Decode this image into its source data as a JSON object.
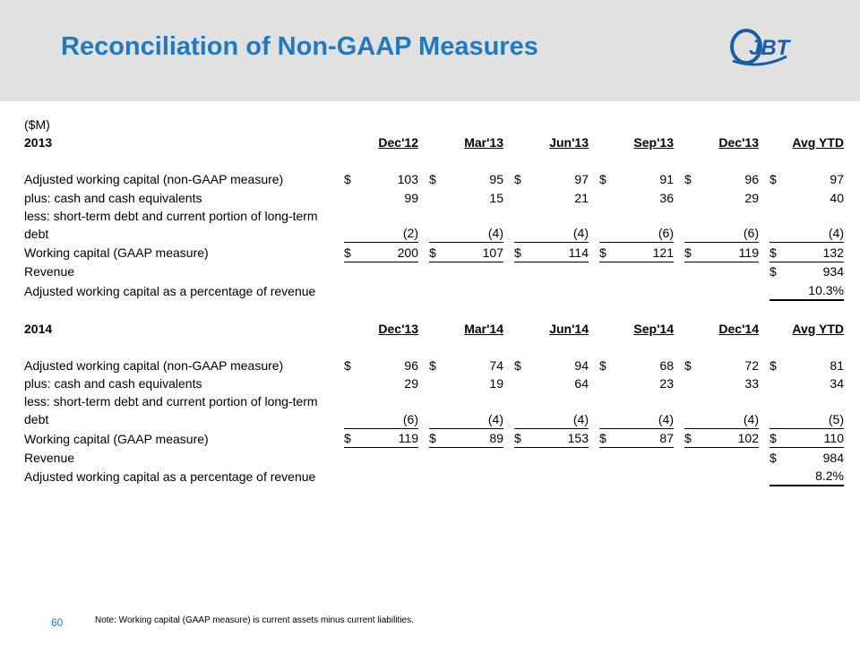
{
  "header": {
    "title": "Reconciliation of Non-GAAP Measures",
    "logo": "JBT"
  },
  "table": {
    "unit": "($M)",
    "sections": [
      {
        "year": "2013",
        "columns": [
          "Dec'12",
          "Mar'13",
          "Jun'13",
          "Sep'13",
          "Dec'13",
          "Avg YTD"
        ],
        "rows": [
          {
            "label": "Adjusted working capital (non-GAAP measure)",
            "cells": [
              {
                "sign": "$",
                "value": "103"
              },
              {
                "sign": "$",
                "value": "95"
              },
              {
                "sign": "$",
                "value": "97"
              },
              {
                "sign": "$",
                "value": "91"
              },
              {
                "sign": "$",
                "value": "96"
              },
              {
                "sign": "$",
                "value": "97"
              }
            ]
          },
          {
            "label": "plus: cash and cash equivalents",
            "cells": [
              {
                "value": "99"
              },
              {
                "value": "15"
              },
              {
                "value": "21"
              },
              {
                "value": "36"
              },
              {
                "value": "29"
              },
              {
                "value": "40"
              }
            ]
          },
          {
            "label": "less: short-term debt and current portion of long-term debt",
            "cells": [
              {
                "value": "(2)"
              },
              {
                "value": "(4)"
              },
              {
                "value": "(4)"
              },
              {
                "value": "(6)"
              },
              {
                "value": "(6)"
              },
              {
                "value": "(4)"
              }
            ]
          },
          {
            "label": "Working capital (GAAP measure)",
            "cells": [
              {
                "sign": "$",
                "value": "200"
              },
              {
                "sign": "$",
                "value": "107"
              },
              {
                "sign": "$",
                "value": "114"
              },
              {
                "sign": "$",
                "value": "121"
              },
              {
                "sign": "$",
                "value": "119"
              },
              {
                "sign": "$",
                "value": "132"
              }
            ]
          },
          {
            "label": "Revenue",
            "cells": [
              {
                "sign": "$",
                "value": "934"
              }
            ]
          },
          {
            "label": "Adjusted working capital as a percentage of revenue",
            "cells": [
              {
                "value": "10.3%"
              }
            ]
          }
        ]
      },
      {
        "year": "2014",
        "columns": [
          "Dec'13",
          "Mar'14",
          "Jun'14",
          "Sep'14",
          "Dec'14",
          "Avg YTD"
        ],
        "rows": [
          {
            "label": "Adjusted working capital (non-GAAP measure)",
            "cells": [
              {
                "sign": "$",
                "value": "96"
              },
              {
                "sign": "$",
                "value": "74"
              },
              {
                "sign": "$",
                "value": "94"
              },
              {
                "sign": "$",
                "value": "68"
              },
              {
                "sign": "$",
                "value": "72"
              },
              {
                "sign": "$",
                "value": "81"
              }
            ]
          },
          {
            "label": "plus: cash and cash equivalents",
            "cells": [
              {
                "value": "29"
              },
              {
                "value": "19"
              },
              {
                "value": "64"
              },
              {
                "value": "23"
              },
              {
                "value": "33"
              },
              {
                "value": "34"
              }
            ]
          },
          {
            "label": "less: short-term debt and current portion of long-term debt",
            "cells": [
              {
                "value": "(6)"
              },
              {
                "value": "(4)"
              },
              {
                "value": "(4)"
              },
              {
                "value": "(4)"
              },
              {
                "value": "(4)"
              },
              {
                "value": "(5)"
              }
            ]
          },
          {
            "label": "Working capital (GAAP measure)",
            "cells": [
              {
                "sign": "$",
                "value": "119"
              },
              {
                "sign": "$",
                "value": "89"
              },
              {
                "sign": "$",
                "value": "153"
              },
              {
                "sign": "$",
                "value": "87"
              },
              {
                "sign": "$",
                "value": "102"
              },
              {
                "sign": "$",
                "value": "110"
              }
            ]
          },
          {
            "label": "Revenue",
            "cells": [
              {
                "sign": "$",
                "value": "984"
              }
            ]
          },
          {
            "label": "Adjusted working capital as a percentage of revenue",
            "cells": [
              {
                "value": "8.2%"
              }
            ]
          }
        ]
      }
    ]
  },
  "page_number": "60",
  "note": "Note:  Working capital (GAAP  measure) is current assets minus current liabilities."
}
